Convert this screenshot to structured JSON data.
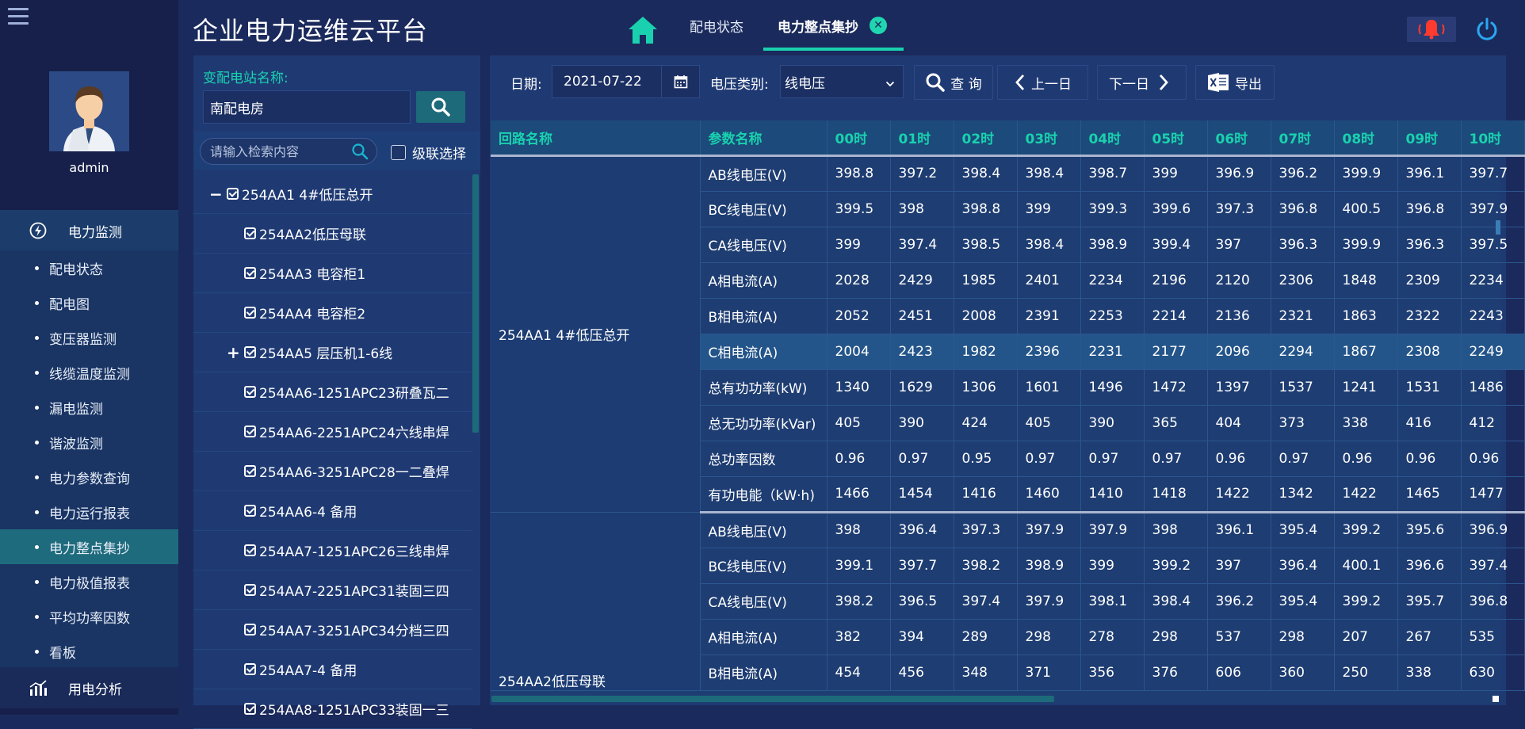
{
  "app": {
    "title": "企业电力运维云平台"
  },
  "user": {
    "name": "admin"
  },
  "sidebar": {
    "group1": "电力监测",
    "items": [
      "配电状态",
      "配电图",
      "变压器监测",
      "线缆温度监测",
      "漏电监测",
      "谐波监测",
      "电力参数查询",
      "电力运行报表",
      "电力整点集抄",
      "电力极值报表",
      "平均功率因数",
      "看板"
    ],
    "active_index": 8,
    "group2": "用电分析"
  },
  "tabs": [
    "配电状态",
    "电力整点集抄"
  ],
  "station": {
    "label": "变配电站名称:",
    "value": "南配电房",
    "tree_search_placeholder": "请输入检索内容",
    "cascade_label": "级联选择"
  },
  "tree": [
    {
      "label": "254AA1 4#低压总开",
      "expander": "−",
      "level": 0
    },
    {
      "label": "254AA2低压母联",
      "expander": "",
      "level": 1
    },
    {
      "label": "254AA3 电容柜1",
      "expander": "",
      "level": 1
    },
    {
      "label": "254AA4 电容柜2",
      "expander": "",
      "level": 1
    },
    {
      "label": "254AA5 层压机1-6线",
      "expander": "+",
      "level": 0
    },
    {
      "label": "254AA6-1251APC23研叠瓦二",
      "expander": "",
      "level": 1
    },
    {
      "label": "254AA6-2251APC24六线串焊",
      "expander": "",
      "level": 1
    },
    {
      "label": "254AA6-3251APC28一二叠焊",
      "expander": "",
      "level": 1
    },
    {
      "label": "254AA6-4 备用",
      "expander": "",
      "level": 1
    },
    {
      "label": "254AA7-1251APC26三线串焊",
      "expander": "",
      "level": 1
    },
    {
      "label": "254AA7-2251APC31装固三四",
      "expander": "",
      "level": 1
    },
    {
      "label": "254AA7-3251APC34分档三四",
      "expander": "",
      "level": 1
    },
    {
      "label": "254AA7-4 备用",
      "expander": "",
      "level": 1
    },
    {
      "label": "254AA8-1251APC33装固一三",
      "expander": "",
      "level": 1
    }
  ],
  "toolbar": {
    "date_label": "日期:",
    "date_value": "2021-07-22",
    "type_label": "电压类别:",
    "type_value": "线电压",
    "query": "查 询",
    "prev": "上一日",
    "next": "下一日",
    "export": "导出"
  },
  "table": {
    "headers": [
      "回路名称",
      "参数名称",
      "00时",
      "01时",
      "02时",
      "03时",
      "04时",
      "05时",
      "06时",
      "07时",
      "08时",
      "09时",
      "10时"
    ],
    "groups": [
      {
        "name": "254AA1 4#低压总开",
        "rows": [
          {
            "param": "AB线电压(V)",
            "values": [
              "398.8",
              "397.2",
              "398.4",
              "398.4",
              "398.7",
              "399",
              "396.9",
              "396.2",
              "399.9",
              "396.1",
              "397.7"
            ]
          },
          {
            "param": "BC线电压(V)",
            "values": [
              "399.5",
              "398",
              "398.8",
              "399",
              "399.3",
              "399.6",
              "397.3",
              "396.8",
              "400.5",
              "396.8",
              "397.9"
            ]
          },
          {
            "param": "CA线电压(V)",
            "values": [
              "399",
              "397.4",
              "398.5",
              "398.4",
              "398.9",
              "399.4",
              "397",
              "396.3",
              "399.9",
              "396.3",
              "397.5"
            ]
          },
          {
            "param": "A相电流(A)",
            "values": [
              "2028",
              "2429",
              "1985",
              "2401",
              "2234",
              "2196",
              "2120",
              "2306",
              "1848",
              "2309",
              "2234"
            ]
          },
          {
            "param": "B相电流(A)",
            "values": [
              "2052",
              "2451",
              "2008",
              "2391",
              "2253",
              "2214",
              "2136",
              "2321",
              "1863",
              "2322",
              "2243"
            ]
          },
          {
            "param": "C相电流(A)",
            "values": [
              "2004",
              "2423",
              "1982",
              "2396",
              "2231",
              "2177",
              "2096",
              "2294",
              "1867",
              "2308",
              "2249"
            ]
          },
          {
            "param": "总有功功率(kW)",
            "values": [
              "1340",
              "1629",
              "1306",
              "1601",
              "1496",
              "1472",
              "1397",
              "1537",
              "1241",
              "1531",
              "1486"
            ]
          },
          {
            "param": "总无功功率(kVar)",
            "values": [
              "405",
              "390",
              "424",
              "405",
              "390",
              "365",
              "404",
              "373",
              "338",
              "416",
              "412"
            ]
          },
          {
            "param": "总功率因数",
            "values": [
              "0.96",
              "0.97",
              "0.95",
              "0.97",
              "0.97",
              "0.97",
              "0.96",
              "0.97",
              "0.96",
              "0.96",
              "0.96"
            ]
          },
          {
            "param": "有功电能（kW·h)",
            "values": [
              "1466",
              "1454",
              "1416",
              "1460",
              "1410",
              "1418",
              "1422",
              "1342",
              "1422",
              "1465",
              "1477"
            ]
          }
        ]
      },
      {
        "name": "254AA2低压母联",
        "rows": [
          {
            "param": "AB线电压(V)",
            "values": [
              "398",
              "396.4",
              "397.3",
              "397.9",
              "397.9",
              "398",
              "396.1",
              "395.4",
              "399.2",
              "395.6",
              "396.9"
            ]
          },
          {
            "param": "BC线电压(V)",
            "values": [
              "399.1",
              "397.7",
              "398.2",
              "398.9",
              "399",
              "399.2",
              "397",
              "396.4",
              "400.1",
              "396.6",
              "397.4"
            ]
          },
          {
            "param": "CA线电压(V)",
            "values": [
              "398.2",
              "396.5",
              "397.4",
              "397.9",
              "398.1",
              "398.4",
              "396.2",
              "395.4",
              "399.2",
              "395.7",
              "396.8"
            ]
          },
          {
            "param": "A相电流(A)",
            "values": [
              "382",
              "394",
              "289",
              "298",
              "278",
              "298",
              "537",
              "298",
              "207",
              "267",
              "535"
            ]
          },
          {
            "param": "B相电流(A)",
            "values": [
              "454",
              "456",
              "348",
              "371",
              "356",
              "376",
              "606",
              "360",
              "250",
              "338",
              "630"
            ]
          }
        ]
      }
    ],
    "highlight": {
      "group": 0,
      "row": 5
    }
  }
}
